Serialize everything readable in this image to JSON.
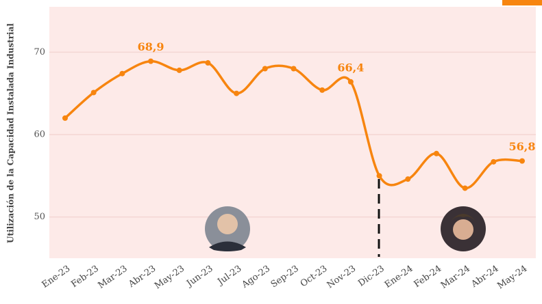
{
  "chart_data": {
    "type": "line",
    "y_label": "Utilización de la Capacidad Instalada Industrial",
    "categories": [
      "Ene-23",
      "Feb-23",
      "Mar-23",
      "Abr-23",
      "May-23",
      "Jun-23",
      "Jul-23",
      "Ago-23",
      "Sep-23",
      "Oct-23",
      "Nov-23",
      "Dic-23",
      "Ene-24",
      "Feb-24",
      "Mar-24",
      "Abr-24",
      "May-24"
    ],
    "values": [
      62.0,
      65.1,
      67.4,
      68.9,
      67.8,
      68.7,
      65.0,
      68.0,
      68.0,
      65.4,
      66.4,
      55.0,
      54.6,
      57.7,
      53.5,
      56.7,
      56.8
    ],
    "value_labels": [
      null,
      null,
      null,
      "68,9",
      null,
      null,
      null,
      null,
      null,
      null,
      "66,4",
      null,
      null,
      null,
      null,
      null,
      "56,8"
    ],
    "color": "#f7850f",
    "ylim": [
      45,
      75.5
    ],
    "yticks": [
      50,
      60,
      70
    ],
    "grid": true
  }
}
